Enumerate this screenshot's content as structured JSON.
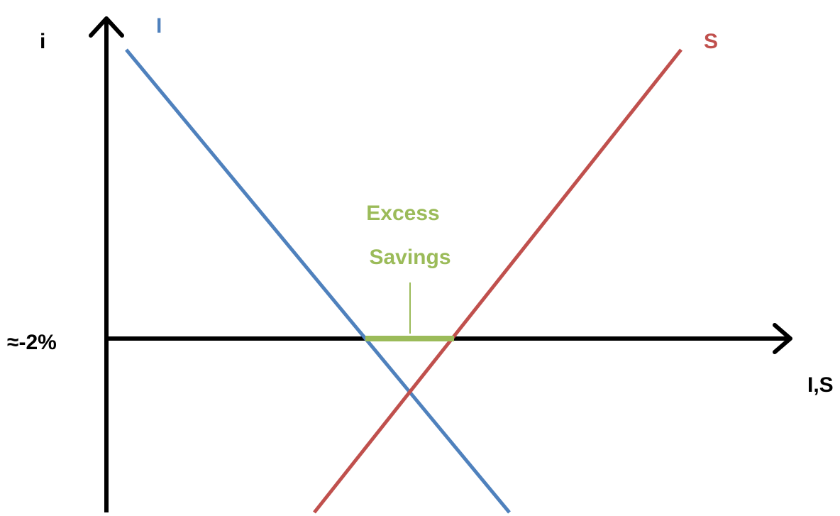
{
  "axes": {
    "y_label": "i",
    "x_label": "I,S",
    "rate_label": "≈-2%"
  },
  "curves": {
    "investment": "I",
    "savings": "S"
  },
  "annotation": {
    "lines": [
      "Excess",
      "Savings"
    ]
  }
}
